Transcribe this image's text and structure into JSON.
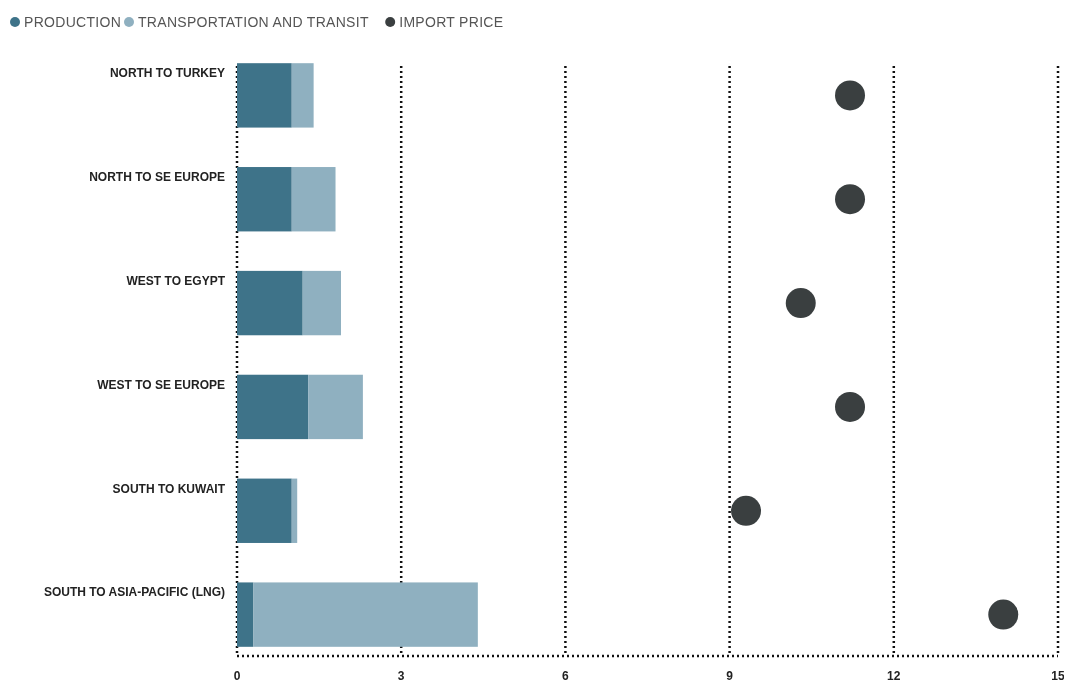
{
  "chart_data": {
    "type": "bar",
    "orientation": "horizontal",
    "stacked": true,
    "categories": [
      "NORTH TO TURKEY",
      "NORTH TO SE EUROPE",
      "WEST TO EGYPT",
      "WEST TO SE EUROPE",
      "SOUTH TO KUWAIT",
      "SOUTH TO ASIA-PACIFIC (LNG)"
    ],
    "series": [
      {
        "name": "PRODUCTION",
        "color": "#3e7389",
        "values": [
          1.0,
          1.0,
          1.2,
          1.3,
          1.0,
          0.3
        ]
      },
      {
        "name": "TRANSPORTATION AND TRANSIT",
        "color": "#8fb0c0",
        "values": [
          0.4,
          0.8,
          0.7,
          1.0,
          0.1,
          4.1
        ]
      },
      {
        "name": "IMPORT PRICE",
        "type": "scatter",
        "color": "#3a3f40",
        "values": [
          11.2,
          11.2,
          10.3,
          11.2,
          9.3,
          14.0
        ]
      }
    ],
    "xlim": [
      0,
      15
    ],
    "xticks": [
      0,
      3,
      6,
      9,
      12,
      15
    ],
    "grid": "x",
    "legend": "top left"
  }
}
